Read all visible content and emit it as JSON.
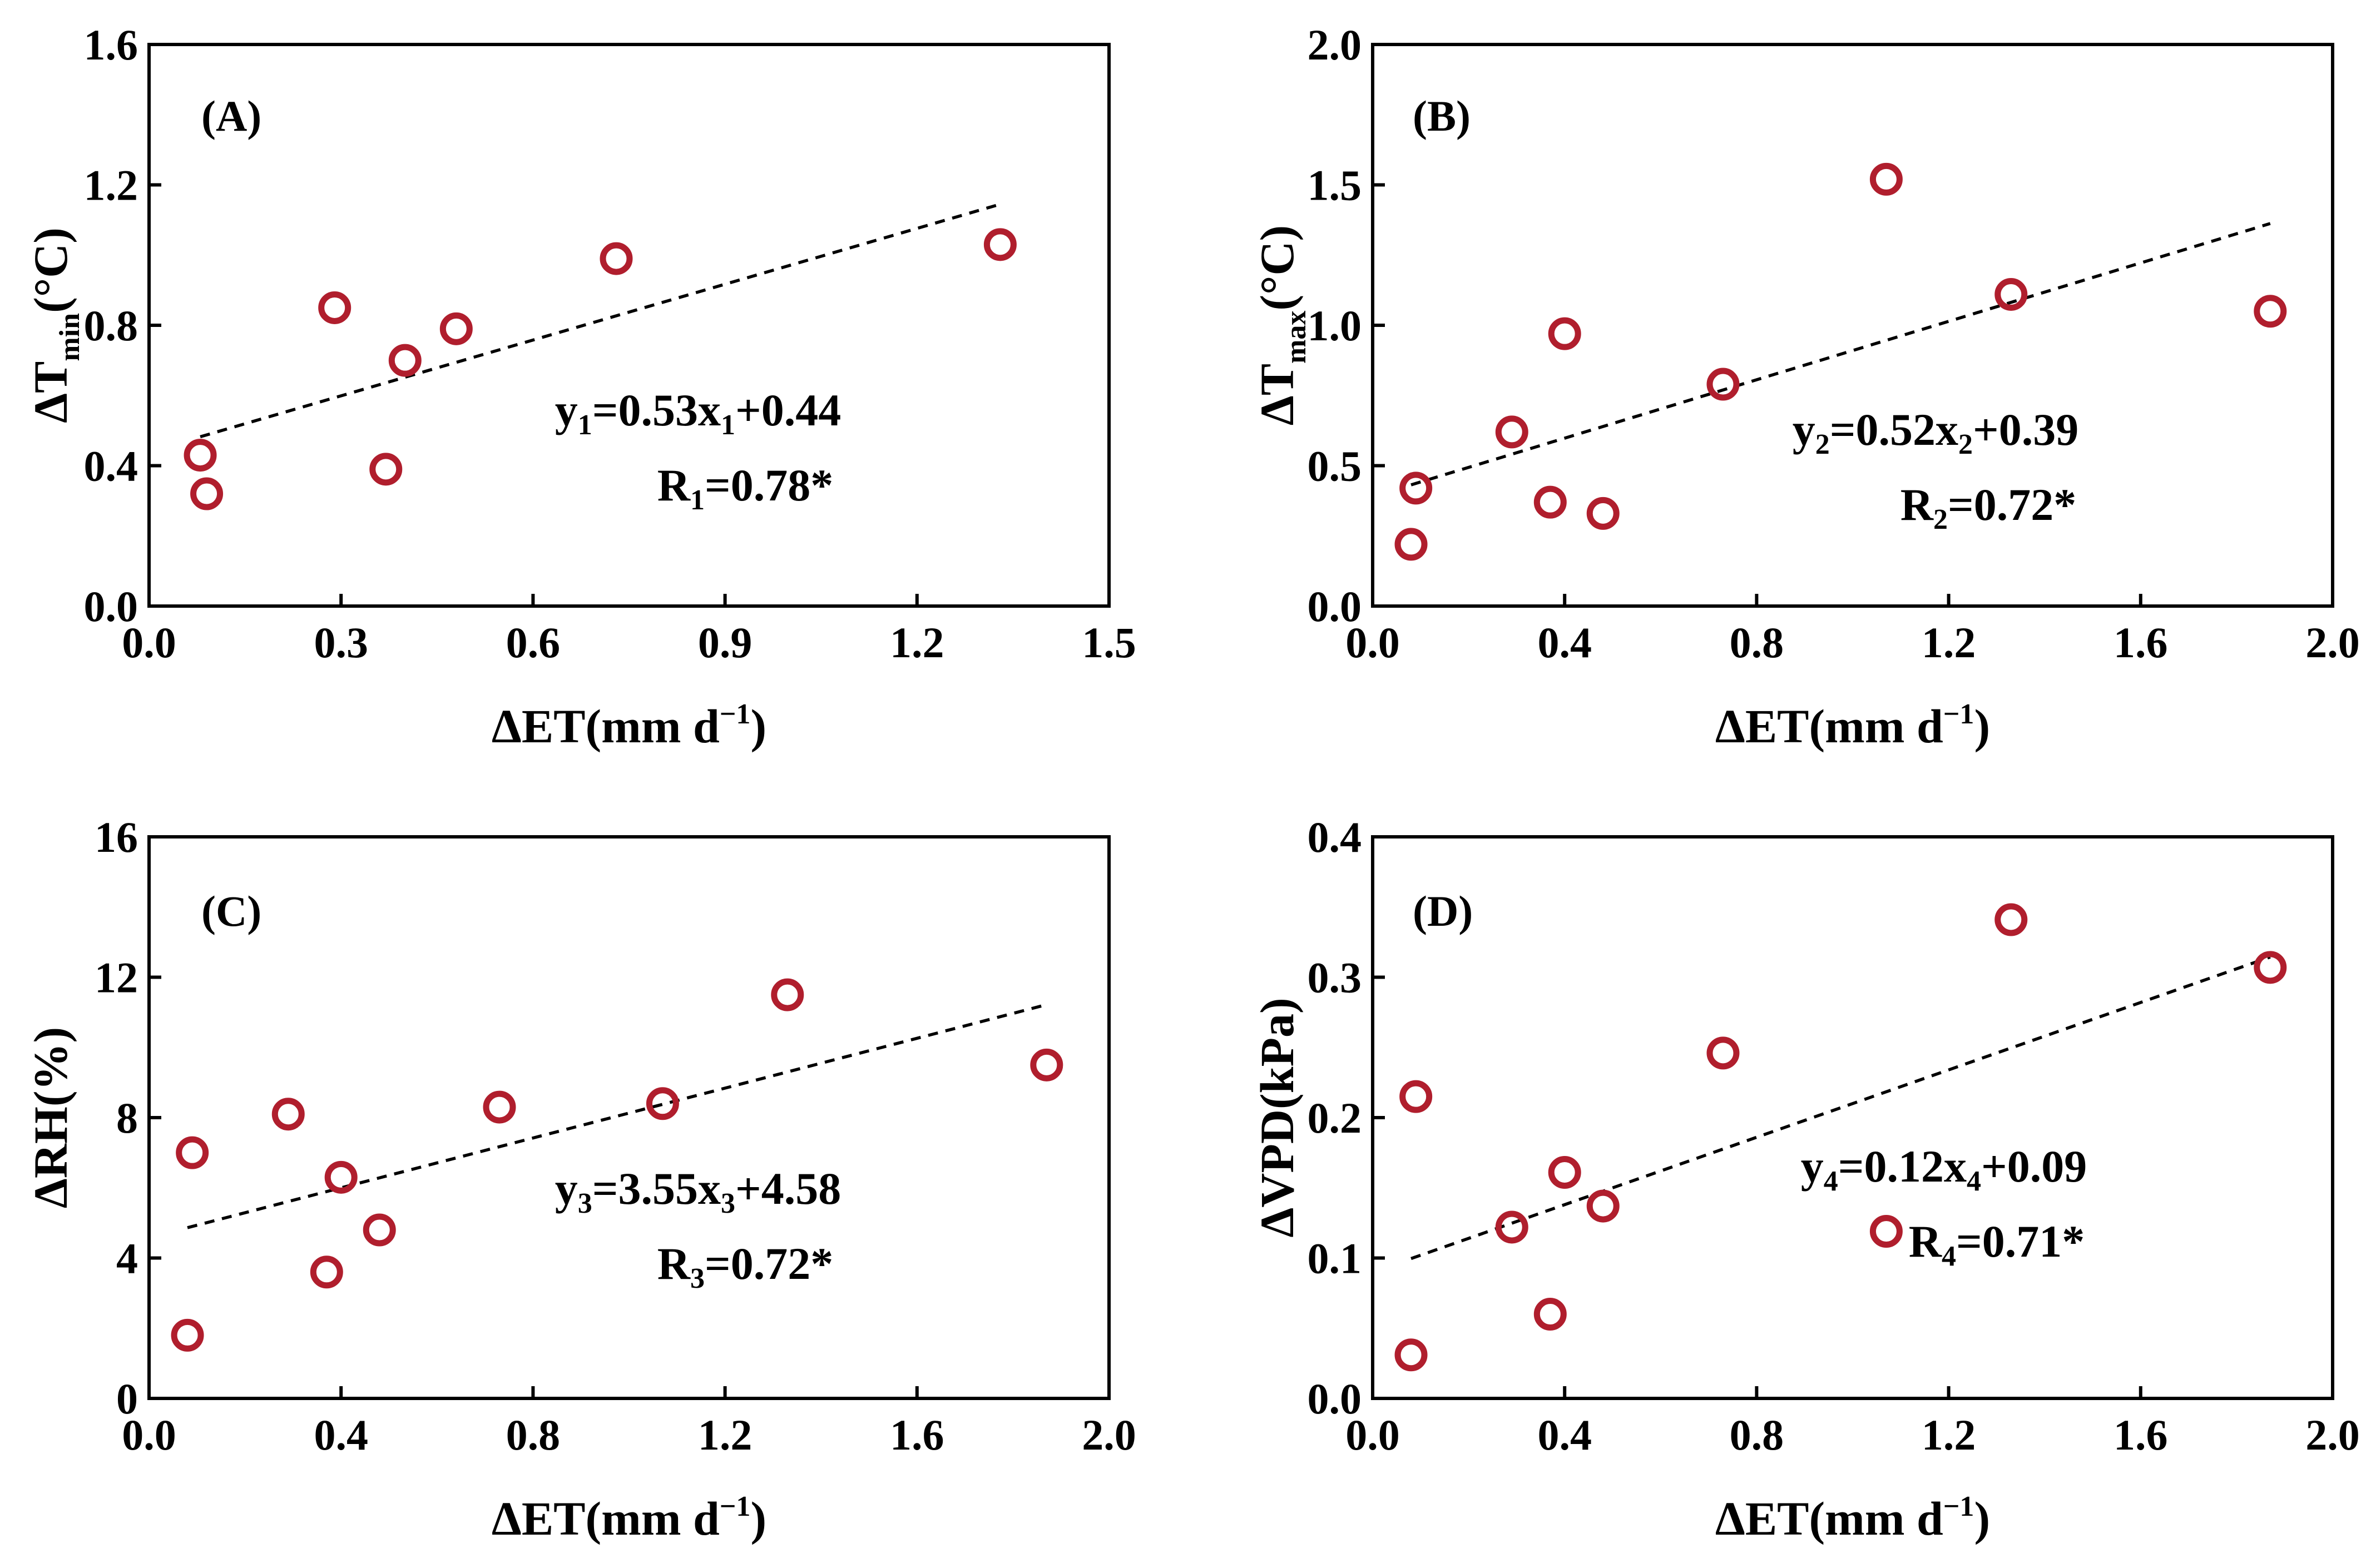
{
  "colors": {
    "point": "#B01E2D",
    "axis": "#000000",
    "background": "#ffffff"
  },
  "chart_data": [
    {
      "id": "A",
      "type": "scatter",
      "panel_label": "(A)",
      "xlabel": "ΔET(mm d",
      "xlabel_sup": "−1",
      "xlabel_close": ")",
      "ylabel": "ΔT",
      "ylabel_sub": "min",
      "ylabel_unit": "(°C)",
      "xlim": [
        0,
        1.5
      ],
      "ylim": [
        0,
        1.6
      ],
      "xticks": [
        0,
        0.3,
        0.6,
        0.9,
        1.2,
        1.5
      ],
      "xtick_labels": [
        "0.0",
        "0.3",
        "0.6",
        "0.9",
        "1.2",
        "1.5"
      ],
      "yticks": [
        0,
        0.4,
        0.8,
        1.2,
        1.6
      ],
      "ytick_labels": [
        "0.0",
        "0.4",
        "0.8",
        "1.2",
        "1.6"
      ],
      "points": [
        {
          "x": 0.08,
          "y": 0.43
        },
        {
          "x": 0.09,
          "y": 0.32
        },
        {
          "x": 0.29,
          "y": 0.85
        },
        {
          "x": 0.37,
          "y": 0.39
        },
        {
          "x": 0.4,
          "y": 0.7
        },
        {
          "x": 0.48,
          "y": 0.79
        },
        {
          "x": 0.73,
          "y": 0.99
        },
        {
          "x": 1.33,
          "y": 1.03
        }
      ],
      "fit": {
        "slope": 0.53,
        "intercept": 0.44,
        "x_range": [
          0.08,
          1.33
        ]
      },
      "equation": {
        "y": "y",
        "y_sub": "1",
        "mid": "=0.53x",
        "x_sub": "1",
        "tail": "+0.44"
      },
      "r_text": {
        "r": "R",
        "r_sub": "1",
        "value": "=0.78*"
      }
    },
    {
      "id": "B",
      "type": "scatter",
      "panel_label": "(B)",
      "xlabel": "ΔET(mm d",
      "xlabel_sup": "−1",
      "xlabel_close": ")",
      "ylabel": "ΔT",
      "ylabel_sub": "max",
      "ylabel_unit": "(°C)",
      "xlim": [
        0,
        2.0
      ],
      "ylim": [
        0,
        2.0
      ],
      "xticks": [
        0,
        0.4,
        0.8,
        1.2,
        1.6,
        2.0
      ],
      "xtick_labels": [
        "0.0",
        "0.4",
        "0.8",
        "1.2",
        "1.6",
        "2.0"
      ],
      "yticks": [
        0,
        0.5,
        1.0,
        1.5,
        2.0
      ],
      "ytick_labels": [
        "0.0",
        "0.5",
        "1.0",
        "1.5",
        "2.0"
      ],
      "points": [
        {
          "x": 0.08,
          "y": 0.22
        },
        {
          "x": 0.09,
          "y": 0.42
        },
        {
          "x": 0.29,
          "y": 0.62
        },
        {
          "x": 0.37,
          "y": 0.37
        },
        {
          "x": 0.4,
          "y": 0.97
        },
        {
          "x": 0.48,
          "y": 0.33
        },
        {
          "x": 0.73,
          "y": 0.79
        },
        {
          "x": 1.07,
          "y": 1.52
        },
        {
          "x": 1.33,
          "y": 1.11
        },
        {
          "x": 1.87,
          "y": 1.05
        }
      ],
      "fit": {
        "slope": 0.52,
        "intercept": 0.39,
        "x_range": [
          0.08,
          1.87
        ]
      },
      "equation": {
        "y": "y",
        "y_sub": "2",
        "mid": "=0.52x",
        "x_sub": "2",
        "tail": "+0.39"
      },
      "r_text": {
        "r": "R",
        "r_sub": "2",
        "value": "=0.72*"
      }
    },
    {
      "id": "C",
      "type": "scatter",
      "panel_label": "(C)",
      "xlabel": "ΔET(mm d",
      "xlabel_sup": "−1",
      "xlabel_close": ")",
      "ylabel": "ΔRH(%)",
      "ylabel_sub": "",
      "ylabel_unit": "",
      "xlim": [
        0,
        2.0
      ],
      "ylim": [
        0,
        16
      ],
      "xticks": [
        0,
        0.4,
        0.8,
        1.2,
        1.6,
        2.0
      ],
      "xtick_labels": [
        "0.0",
        "0.4",
        "0.8",
        "1.2",
        "1.6",
        "2.0"
      ],
      "yticks": [
        0,
        4,
        8,
        12,
        16
      ],
      "ytick_labels": [
        "0",
        "4",
        "8",
        "12",
        "16"
      ],
      "points": [
        {
          "x": 0.08,
          "y": 1.8
        },
        {
          "x": 0.09,
          "y": 7.0
        },
        {
          "x": 0.29,
          "y": 8.1
        },
        {
          "x": 0.37,
          "y": 3.6
        },
        {
          "x": 0.4,
          "y": 6.3
        },
        {
          "x": 0.48,
          "y": 4.8
        },
        {
          "x": 0.73,
          "y": 8.3
        },
        {
          "x": 1.07,
          "y": 8.4
        },
        {
          "x": 1.33,
          "y": 11.5
        },
        {
          "x": 1.87,
          "y": 9.5
        }
      ],
      "fit": {
        "slope": 3.55,
        "intercept": 4.58,
        "x_range": [
          0.08,
          1.87
        ]
      },
      "equation": {
        "y": "y",
        "y_sub": "3",
        "mid": "=3.55x",
        "x_sub": "3",
        "tail": "+4.58"
      },
      "r_text": {
        "r": "R",
        "r_sub": "3",
        "value": "=0.72*"
      }
    },
    {
      "id": "D",
      "type": "scatter",
      "panel_label": "(D)",
      "xlabel": "ΔET(mm d",
      "xlabel_sup": "−1",
      "xlabel_close": ")",
      "ylabel": "ΔVPD(kPa)",
      "ylabel_sub": "",
      "ylabel_unit": "",
      "xlim": [
        0,
        2.0
      ],
      "ylim": [
        0,
        0.4
      ],
      "xticks": [
        0,
        0.4,
        0.8,
        1.2,
        1.6,
        2.0
      ],
      "xtick_labels": [
        "0.0",
        "0.4",
        "0.8",
        "1.2",
        "1.6",
        "2.0"
      ],
      "yticks": [
        0,
        0.1,
        0.2,
        0.3,
        0.4
      ],
      "ytick_labels": [
        "0.0",
        "0.1",
        "0.2",
        "0.3",
        "0.4"
      ],
      "points": [
        {
          "x": 0.08,
          "y": 0.031
        },
        {
          "x": 0.09,
          "y": 0.215
        },
        {
          "x": 0.29,
          "y": 0.122
        },
        {
          "x": 0.37,
          "y": 0.06
        },
        {
          "x": 0.4,
          "y": 0.161
        },
        {
          "x": 0.48,
          "y": 0.137
        },
        {
          "x": 0.73,
          "y": 0.246
        },
        {
          "x": 1.07,
          "y": 0.119
        },
        {
          "x": 1.33,
          "y": 0.341
        },
        {
          "x": 1.87,
          "y": 0.307
        }
      ],
      "fit": {
        "slope": 0.12,
        "intercept": 0.09,
        "x_range": [
          0.08,
          1.87
        ]
      },
      "equation": {
        "y": "y",
        "y_sub": "4",
        "mid": "=0.12x",
        "x_sub": "4",
        "tail": "+0.09"
      },
      "r_text": {
        "r": "R",
        "r_sub": "4",
        "value": "=0.71*"
      }
    }
  ]
}
